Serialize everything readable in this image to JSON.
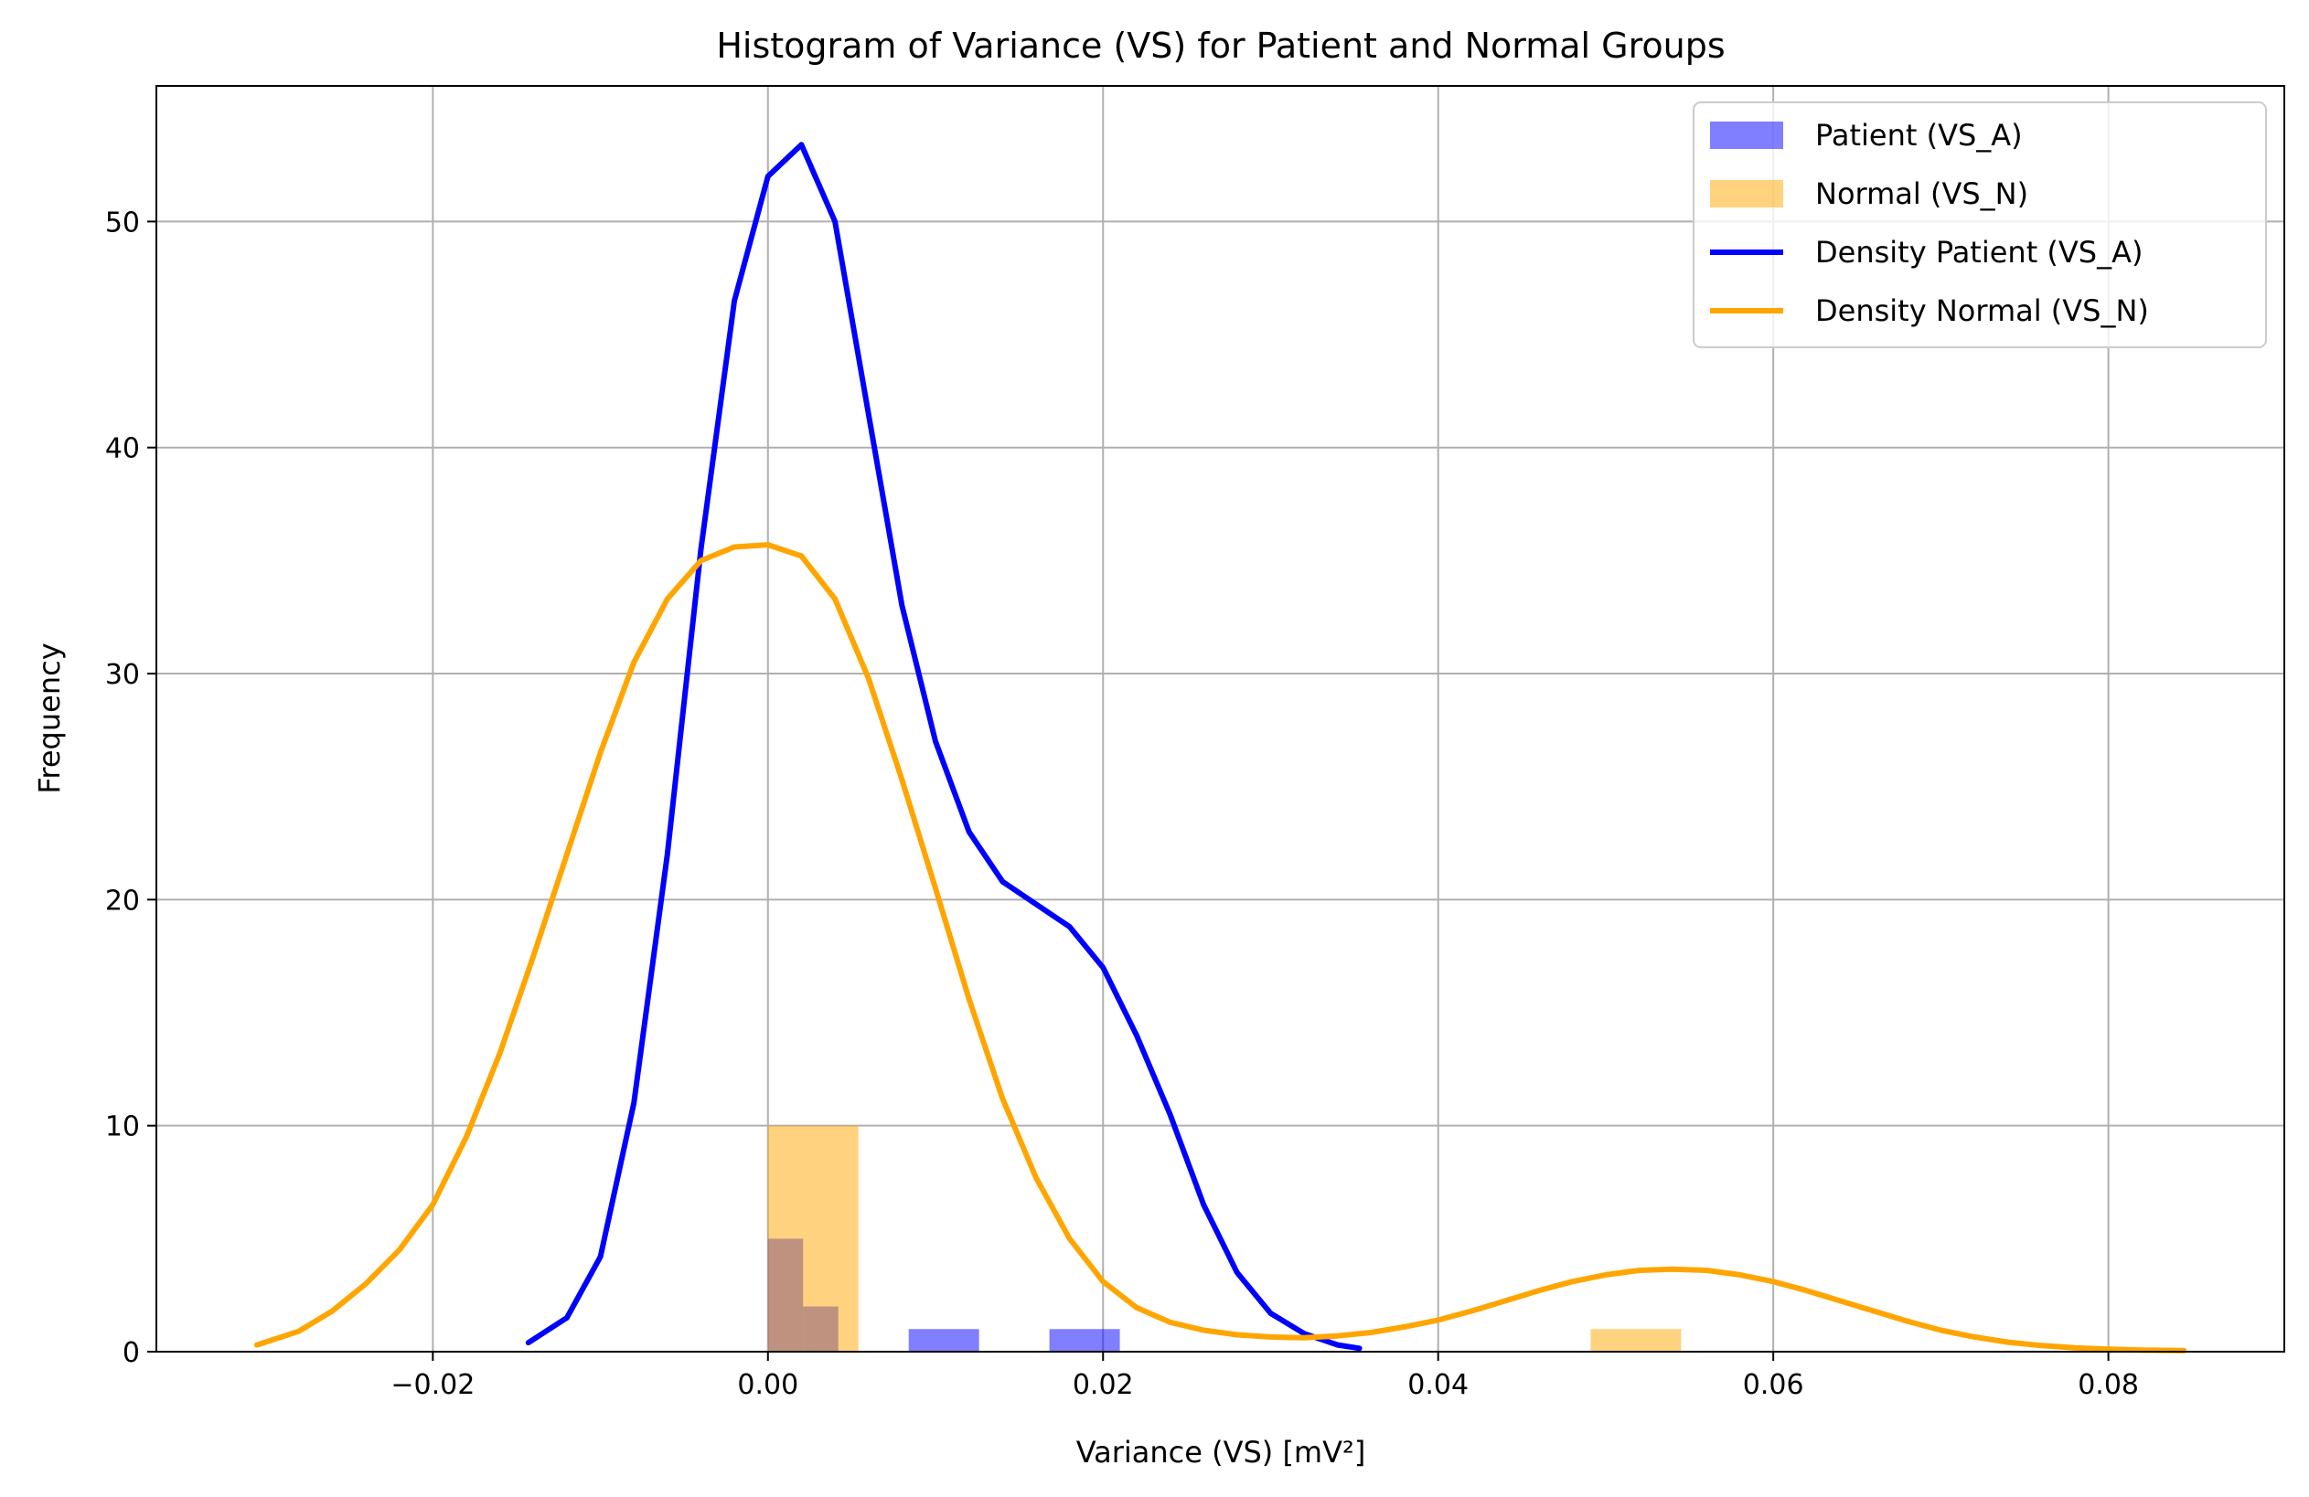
{
  "chart_data": {
    "type": "histogram",
    "title": "Histogram of Variance (VS) for Patient and Normal Groups",
    "xlabel": "Variance (VS) [mV²]",
    "ylabel": "Frequency",
    "xlim": [
      -0.0365,
      0.0905
    ],
    "ylim": [
      0,
      56
    ],
    "xticks": [
      {
        "value": -0.02,
        "label": "−0.02"
      },
      {
        "value": 0.0,
        "label": "0.00"
      },
      {
        "value": 0.02,
        "label": "0.02"
      },
      {
        "value": 0.04,
        "label": "0.04"
      },
      {
        "value": 0.06,
        "label": "0.06"
      },
      {
        "value": 0.08,
        "label": "0.08"
      }
    ],
    "yticks": [
      {
        "value": 0,
        "label": "0"
      },
      {
        "value": 10,
        "label": "10"
      },
      {
        "value": 20,
        "label": "20"
      },
      {
        "value": 30,
        "label": "30"
      },
      {
        "value": 40,
        "label": "40"
      },
      {
        "value": 50,
        "label": "50"
      }
    ],
    "grid": true,
    "legend_position": "top-right",
    "histograms": [
      {
        "name": "Patient (VS_A)",
        "color": "#0000ff",
        "opacity": 0.5,
        "bins": [
          {
            "x0": 0.0,
            "x1": 0.0021,
            "count": 5
          },
          {
            "x0": 0.0021,
            "x1": 0.0042,
            "count": 2
          },
          {
            "x0": 0.0084,
            "x1": 0.0126,
            "count": 1
          },
          {
            "x0": 0.0168,
            "x1": 0.021,
            "count": 1
          }
        ]
      },
      {
        "name": "Normal (VS_N)",
        "color": "#ffa500",
        "opacity": 0.5,
        "bins": [
          {
            "x0": 0.0,
            "x1": 0.0054,
            "count": 10
          },
          {
            "x0": 0.0491,
            "x1": 0.0545,
            "count": 1
          }
        ]
      }
    ],
    "density_series": [
      {
        "name": "Density Patient (VS_A)",
        "color": "#0000ff",
        "points": [
          [
            -0.0143,
            0.4
          ],
          [
            -0.012,
            1.5
          ],
          [
            -0.01,
            4.2
          ],
          [
            -0.008,
            11.0
          ],
          [
            -0.006,
            22.0
          ],
          [
            -0.004,
            35.5
          ],
          [
            -0.002,
            46.5
          ],
          [
            0.0,
            52.0
          ],
          [
            0.002,
            53.4
          ],
          [
            0.004,
            50.0
          ],
          [
            0.006,
            41.5
          ],
          [
            0.008,
            33.0
          ],
          [
            0.01,
            27.0
          ],
          [
            0.012,
            23.0
          ],
          [
            0.014,
            20.8
          ],
          [
            0.016,
            19.8
          ],
          [
            0.018,
            18.8
          ],
          [
            0.02,
            17.0
          ],
          [
            0.022,
            14.0
          ],
          [
            0.024,
            10.5
          ],
          [
            0.026,
            6.5
          ],
          [
            0.028,
            3.5
          ],
          [
            0.03,
            1.7
          ],
          [
            0.032,
            0.8
          ],
          [
            0.034,
            0.3
          ],
          [
            0.0353,
            0.15
          ]
        ]
      },
      {
        "name": "Density Normal (VS_N)",
        "color": "#ffa500",
        "points": [
          [
            -0.0305,
            0.3
          ],
          [
            -0.028,
            0.9
          ],
          [
            -0.026,
            1.8
          ],
          [
            -0.024,
            3.0
          ],
          [
            -0.022,
            4.5
          ],
          [
            -0.02,
            6.5
          ],
          [
            -0.018,
            9.5
          ],
          [
            -0.016,
            13.2
          ],
          [
            -0.014,
            17.5
          ],
          [
            -0.012,
            22.0
          ],
          [
            -0.01,
            26.5
          ],
          [
            -0.008,
            30.5
          ],
          [
            -0.006,
            33.3
          ],
          [
            -0.004,
            35.0
          ],
          [
            -0.002,
            35.6
          ],
          [
            0.0,
            35.7
          ],
          [
            0.002,
            35.2
          ],
          [
            0.004,
            33.3
          ],
          [
            0.006,
            29.8
          ],
          [
            0.008,
            25.3
          ],
          [
            0.01,
            20.5
          ],
          [
            0.012,
            15.6
          ],
          [
            0.014,
            11.2
          ],
          [
            0.016,
            7.7
          ],
          [
            0.018,
            5.0
          ],
          [
            0.02,
            3.1
          ],
          [
            0.022,
            1.95
          ],
          [
            0.024,
            1.3
          ],
          [
            0.026,
            0.95
          ],
          [
            0.028,
            0.75
          ],
          [
            0.03,
            0.65
          ],
          [
            0.032,
            0.62
          ],
          [
            0.034,
            0.7
          ],
          [
            0.036,
            0.85
          ],
          [
            0.038,
            1.1
          ],
          [
            0.04,
            1.4
          ],
          [
            0.042,
            1.8
          ],
          [
            0.044,
            2.25
          ],
          [
            0.046,
            2.7
          ],
          [
            0.048,
            3.1
          ],
          [
            0.05,
            3.4
          ],
          [
            0.052,
            3.6
          ],
          [
            0.054,
            3.65
          ],
          [
            0.056,
            3.6
          ],
          [
            0.058,
            3.4
          ],
          [
            0.06,
            3.1
          ],
          [
            0.062,
            2.7
          ],
          [
            0.064,
            2.25
          ],
          [
            0.066,
            1.8
          ],
          [
            0.068,
            1.35
          ],
          [
            0.07,
            0.95
          ],
          [
            0.072,
            0.65
          ],
          [
            0.074,
            0.42
          ],
          [
            0.076,
            0.27
          ],
          [
            0.078,
            0.17
          ],
          [
            0.08,
            0.11
          ],
          [
            0.082,
            0.07
          ],
          [
            0.0845,
            0.05
          ]
        ]
      }
    ]
  }
}
